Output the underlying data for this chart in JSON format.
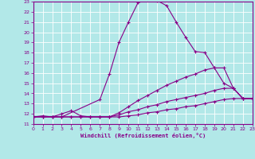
{
  "xlabel": "Windchill (Refroidissement éolien,°C)",
  "xlim": [
    0,
    23
  ],
  "ylim": [
    11,
    23
  ],
  "xticks": [
    0,
    1,
    2,
    3,
    4,
    5,
    6,
    7,
    8,
    9,
    10,
    11,
    12,
    13,
    14,
    15,
    16,
    17,
    18,
    19,
    20,
    21,
    22,
    23
  ],
  "yticks": [
    11,
    12,
    13,
    14,
    15,
    16,
    17,
    18,
    19,
    20,
    21,
    22,
    23
  ],
  "bg_color": "#b2e8e8",
  "grid_color": "#ffffff",
  "line_color": "#880088",
  "lines": [
    {
      "x": [
        0,
        1,
        2,
        3,
        7,
        8,
        9,
        10,
        11,
        12,
        13,
        14,
        15,
        16,
        17,
        18,
        19,
        20,
        21,
        22,
        23
      ],
      "y": [
        11.7,
        11.8,
        11.7,
        11.7,
        13.4,
        15.9,
        19.0,
        21.0,
        22.9,
        23.2,
        23.1,
        22.6,
        21.0,
        19.5,
        18.1,
        18.0,
        16.5,
        15.0,
        14.5,
        13.5,
        13.5
      ]
    },
    {
      "x": [
        0,
        1,
        2,
        3,
        4,
        5,
        6,
        7,
        8,
        9,
        10,
        11,
        12,
        13,
        14,
        15,
        16,
        17,
        18,
        19,
        20,
        21,
        22,
        23
      ],
      "y": [
        11.7,
        11.7,
        11.7,
        11.7,
        11.7,
        11.7,
        11.7,
        11.7,
        11.7,
        12.1,
        12.7,
        13.3,
        13.8,
        14.3,
        14.8,
        15.2,
        15.6,
        15.9,
        16.3,
        16.5,
        16.5,
        14.5,
        13.5,
        13.5
      ]
    },
    {
      "x": [
        0,
        1,
        2,
        3,
        4,
        5,
        6,
        7,
        8,
        9,
        10,
        11,
        12,
        13,
        14,
        15,
        16,
        17,
        18,
        19,
        20,
        21,
        22,
        23
      ],
      "y": [
        11.7,
        11.7,
        11.7,
        11.7,
        11.7,
        11.7,
        11.7,
        11.7,
        11.7,
        11.9,
        12.2,
        12.4,
        12.7,
        12.9,
        13.2,
        13.4,
        13.6,
        13.8,
        14.0,
        14.3,
        14.5,
        14.5,
        13.5,
        13.5
      ]
    },
    {
      "x": [
        0,
        1,
        2,
        3,
        4,
        5,
        6,
        7,
        8,
        9,
        10,
        11,
        12,
        13,
        14,
        15,
        16,
        17,
        18,
        19,
        20,
        21,
        22,
        23
      ],
      "y": [
        11.7,
        11.7,
        11.7,
        12.0,
        12.3,
        11.8,
        11.7,
        11.7,
        11.7,
        11.7,
        11.8,
        11.9,
        12.1,
        12.2,
        12.4,
        12.5,
        12.7,
        12.8,
        13.0,
        13.2,
        13.4,
        13.5,
        13.5,
        13.5
      ]
    }
  ]
}
